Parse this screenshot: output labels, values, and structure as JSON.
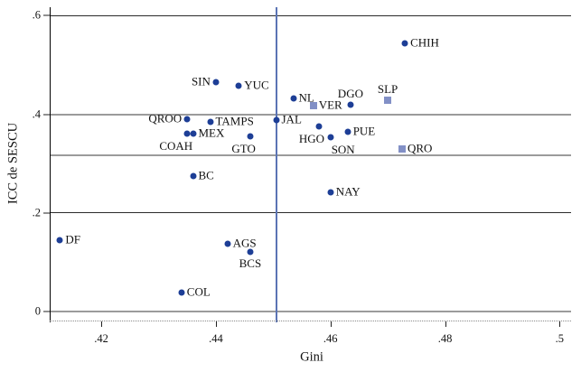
{
  "chart_data": {
    "type": "scatter",
    "title": "",
    "xlabel": "Gini",
    "ylabel": "ICC de SESCU",
    "xlim": [
      0.411,
      0.502
    ],
    "ylim": [
      -0.018,
      0.617
    ],
    "grid": "horizontal-only",
    "legend": "none",
    "xticks": [
      {
        "value": 0.42,
        "label": ".42"
      },
      {
        "value": 0.44,
        "label": ".44"
      },
      {
        "value": 0.46,
        "label": ".46"
      },
      {
        "value": 0.48,
        "label": ".48"
      },
      {
        "value": 0.5,
        "label": ".5"
      }
    ],
    "yticks": [
      {
        "value": 0.0,
        "label": "0"
      },
      {
        "value": 0.2,
        "label": ".2"
      },
      {
        "value": 0.4,
        "label": ".4"
      },
      {
        "value": 0.6,
        "label": ".6"
      }
    ],
    "gridlines_y": [
      {
        "value": 0.6,
        "style": "dark"
      },
      {
        "value": 0.4,
        "style": "gray"
      },
      {
        "value": 0.317,
        "style": "gray"
      },
      {
        "value": 0.2,
        "style": "dark"
      },
      {
        "value": 0.0,
        "style": "gray"
      }
    ],
    "refline_x": {
      "value": 0.4505,
      "color": "#5b74b4"
    },
    "colors": {
      "circle": "#1d3e96",
      "square": "#8290c6",
      "refline": "#5b74b4",
      "grid_dark": "#2b2b2b",
      "grid_gray": "#9b9b9b",
      "axis": "#000000",
      "text": "#111111"
    },
    "points": [
      {
        "label": "CHIH",
        "x": 0.473,
        "y": 0.543,
        "marker": "circle",
        "label_pos": "right"
      },
      {
        "label": "SIN",
        "x": 0.44,
        "y": 0.466,
        "marker": "circle",
        "label_pos": "left"
      },
      {
        "label": "YUC",
        "x": 0.444,
        "y": 0.457,
        "marker": "circle",
        "label_pos": "right"
      },
      {
        "label": "NL",
        "x": 0.4535,
        "y": 0.433,
        "marker": "circle",
        "label_pos": "right"
      },
      {
        "label": "VER",
        "x": 0.457,
        "y": 0.417,
        "marker": "square",
        "label_pos": "right"
      },
      {
        "label": "DGO",
        "x": 0.4635,
        "y": 0.42,
        "marker": "circle",
        "label_pos": "above"
      },
      {
        "label": "SLP",
        "x": 0.47,
        "y": 0.428,
        "marker": "square",
        "label_pos": "above"
      },
      {
        "label": "QROO",
        "x": 0.435,
        "y": 0.391,
        "marker": "circle",
        "label_pos": "left"
      },
      {
        "label": "TAMPS",
        "x": 0.439,
        "y": 0.385,
        "marker": "circle",
        "label_pos": "right"
      },
      {
        "label": "JAL",
        "x": 0.4505,
        "y": 0.388,
        "marker": "circle",
        "label_pos": "right"
      },
      {
        "label": "MEX",
        "x": 0.436,
        "y": 0.361,
        "marker": "circle",
        "label_pos": "right"
      },
      {
        "label": "COAH",
        "x": 0.435,
        "y": 0.361,
        "marker": "circle",
        "label_pos": "below-left"
      },
      {
        "label": "GTO",
        "x": 0.446,
        "y": 0.355,
        "marker": "circle",
        "label_pos": "below-left"
      },
      {
        "label": "HGO",
        "x": 0.458,
        "y": 0.376,
        "marker": "circle",
        "label_pos": "below-left"
      },
      {
        "label": "SON",
        "x": 0.46,
        "y": 0.3535,
        "marker": "circle",
        "label_pos": "below-right"
      },
      {
        "label": "PUE",
        "x": 0.463,
        "y": 0.364,
        "marker": "circle",
        "label_pos": "right"
      },
      {
        "label": "QRO",
        "x": 0.4725,
        "y": 0.33,
        "marker": "square",
        "label_pos": "right"
      },
      {
        "label": "BC",
        "x": 0.436,
        "y": 0.275,
        "marker": "circle",
        "label_pos": "right"
      },
      {
        "label": "NAY",
        "x": 0.46,
        "y": 0.242,
        "marker": "circle",
        "label_pos": "right"
      },
      {
        "label": "DF",
        "x": 0.4128,
        "y": 0.145,
        "marker": "circle",
        "label_pos": "right"
      },
      {
        "label": "AGS",
        "x": 0.442,
        "y": 0.1375,
        "marker": "circle",
        "label_pos": "right"
      },
      {
        "label": "BCS",
        "x": 0.446,
        "y": 0.121,
        "marker": "circle",
        "label_pos": "below"
      },
      {
        "label": "COL",
        "x": 0.434,
        "y": 0.039,
        "marker": "circle",
        "label_pos": "right"
      }
    ]
  }
}
